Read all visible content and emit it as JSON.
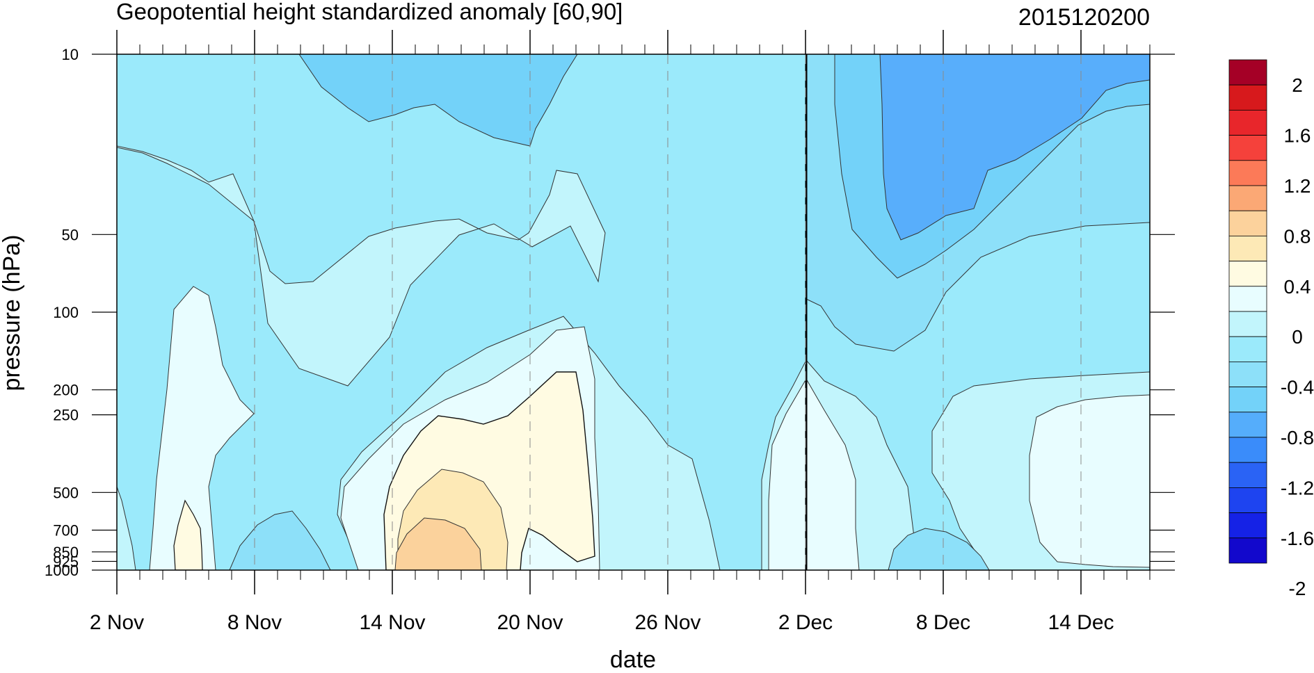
{
  "chart_data": {
    "type": "heatmap",
    "subtype": "time-pressure filled contour",
    "title": "Geopotential height standardized anomaly [60,90]",
    "right_title": "2015120200",
    "xlabel": "date",
    "ylabel": "pressure (hPa)",
    "x_ticks": [
      "2 Nov",
      "8 Nov",
      "14 Nov",
      "20 Nov",
      "26 Nov",
      "2 Dec",
      "8 Dec",
      "14 Dec"
    ],
    "x_range": [
      "2015-11-02",
      "2015-12-17"
    ],
    "y_ticks": [
      "10",
      "50",
      "100",
      "200",
      "250",
      "500",
      "700",
      "850",
      "925",
      "1000"
    ],
    "y_range": [
      1000,
      10
    ],
    "y_scale": "log",
    "y_reversed": true,
    "reference_line_date": "2 Dec",
    "colorbar": {
      "labels": [
        "2",
        "1.6",
        "1.2",
        "0.8",
        "0.4",
        "0",
        "-0.4",
        "-0.8",
        "-1.2",
        "-1.6",
        "-2"
      ],
      "colors": [
        "#a50026",
        "#d7191c",
        "#e8262b",
        "#f5413b",
        "#fc7a58",
        "#fba875",
        "#fcd29c",
        "#fde9b6",
        "#fffbe2",
        "#e8fdff",
        "#c2f5fc",
        "#9beafb",
        "#8de0f9",
        "#73d2f9",
        "#55adfb",
        "#3a8cfa",
        "#2a63f5",
        "#1e44f0",
        "#1522e6",
        "#1208cc"
      ]
    },
    "levels": [
      -1.0,
      -0.8,
      -0.6,
      -0.4,
      -0.2,
      0,
      0.2,
      0.4
    ],
    "level_colors": {
      "-1.0": "#58aefb",
      "-0.8": "#73d2f9",
      "-0.6": "#8de0f9",
      "-0.4": "#9beafb",
      "-0.2": "#c2f5fc",
      "0": "#e8fdff",
      "0.2": "#fffbe2",
      "0.4": "#fde9b6",
      "0.6": "#fbd29c"
    },
    "dates": [
      "Nov 2",
      "Nov 5",
      "Nov 8",
      "Nov 11",
      "Nov 14",
      "Nov 17",
      "Nov 20",
      "Nov 23",
      "Nov 26",
      "Nov 29",
      "Dec 2",
      "Dec 5",
      "Dec 8",
      "Dec 11",
      "Dec 14",
      "Dec 17"
    ],
    "pressure_levels": [
      10,
      50,
      100,
      200,
      250,
      500,
      700,
      850,
      925,
      1000
    ],
    "values": [
      [
        -0.45,
        -0.55,
        -0.75,
        -0.85,
        -0.85,
        -0.8,
        -0.6,
        -0.55,
        -0.5,
        -0.45,
        -0.55,
        -0.7,
        -1.1,
        -1.15,
        -1.05,
        -0.95
      ],
      [
        -0.3,
        -0.45,
        -0.6,
        -0.7,
        -0.75,
        -0.6,
        -0.45,
        -0.55,
        -0.6,
        -0.55,
        -0.6,
        -0.7,
        -1.05,
        -1.0,
        -0.95,
        -0.85
      ],
      [
        -0.2,
        -0.1,
        -0.4,
        -0.55,
        -0.45,
        -0.3,
        -0.3,
        -0.5,
        -0.6,
        -0.6,
        -0.6,
        -0.7,
        -0.85,
        -0.85,
        -0.8,
        -0.75
      ],
      [
        -0.2,
        -0.05,
        -0.35,
        -0.45,
        -0.3,
        -0.15,
        0.05,
        -0.3,
        -0.55,
        -0.6,
        -0.35,
        -0.55,
        -0.65,
        -0.45,
        -0.35,
        -0.3
      ],
      [
        -0.25,
        -0.05,
        -0.3,
        -0.4,
        -0.25,
        0.15,
        0.15,
        -0.2,
        -0.55,
        -0.6,
        -0.25,
        -0.55,
        -0.6,
        -0.4,
        -0.15,
        -0.1
      ],
      [
        -0.25,
        -0.05,
        -0.3,
        -0.4,
        -0.05,
        0.3,
        0.15,
        -0.1,
        -0.55,
        -0.45,
        -0.05,
        -0.5,
        -0.55,
        -0.35,
        -0.1,
        -0.05
      ],
      [
        -0.4,
        0.05,
        -0.45,
        -0.5,
        0.1,
        0.45,
        0.2,
        -0.05,
        -0.55,
        -0.55,
        -0.05,
        -0.45,
        -0.65,
        -0.5,
        -0.2,
        -0.05
      ],
      [
        -0.45,
        0.25,
        -0.55,
        -0.6,
        0.15,
        0.6,
        0.25,
        -0.05,
        -0.6,
        -0.6,
        -0.1,
        -0.5,
        -0.65,
        -0.6,
        -0.3,
        -0.1
      ],
      [
        -0.45,
        0.15,
        -0.55,
        -0.6,
        0.15,
        0.65,
        0.25,
        -0.05,
        -0.6,
        -0.65,
        -0.1,
        -0.5,
        -0.7,
        -0.6,
        -0.35,
        -0.15
      ],
      [
        -0.45,
        0.1,
        -0.55,
        -0.6,
        0.15,
        0.6,
        0.25,
        -0.05,
        -0.6,
        -0.6,
        -0.1,
        -0.5,
        -0.65,
        -0.6,
        -0.35,
        -0.15
      ]
    ]
  }
}
